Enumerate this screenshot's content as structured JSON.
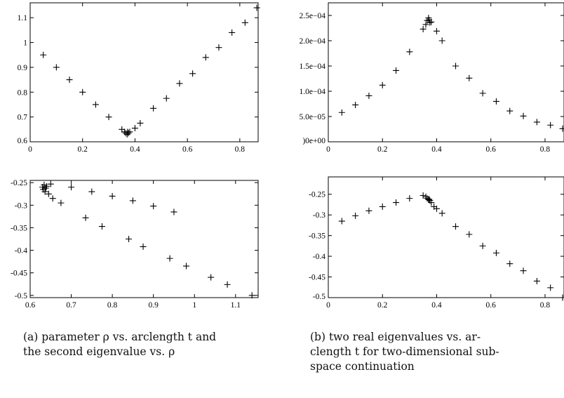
{
  "captions": {
    "a": [
      "(a) parameter ρ vs. arclength t and",
      "the second eigenvalue vs. ρ"
    ],
    "b": [
      "(b)  two  real  eigenvalues  vs.    ar-",
      "clength  t  for  two-dimensional  sub-",
      "space continuation"
    ]
  },
  "chart_data": [
    {
      "type": "scatter",
      "marker": "+",
      "xlim": [
        0,
        0.87
      ],
      "ylim": [
        0.6,
        1.16
      ],
      "xticks": [
        0,
        0.2,
        0.4,
        0.6,
        0.8
      ],
      "xtick_labels": [
        "0",
        "0.2",
        "0.4",
        "0.6",
        "0.8"
      ],
      "yticks": [
        0.6,
        0.7,
        0.8,
        0.9,
        1.0,
        1.1
      ],
      "ytick_labels": [
        "0.6",
        "0.7",
        "0.8",
        "0.9",
        "1",
        "1.1"
      ],
      "x": [
        0.05,
        0.1,
        0.15,
        0.2,
        0.25,
        0.3,
        0.35,
        0.36,
        0.365,
        0.37,
        0.372,
        0.375,
        0.38,
        0.4,
        0.42,
        0.47,
        0.52,
        0.57,
        0.62,
        0.67,
        0.72,
        0.77,
        0.82,
        0.865
      ],
      "y": [
        0.95,
        0.9,
        0.85,
        0.8,
        0.75,
        0.7,
        0.65,
        0.64,
        0.635,
        0.63,
        0.64,
        0.635,
        0.64,
        0.655,
        0.675,
        0.735,
        0.775,
        0.835,
        0.875,
        0.94,
        0.98,
        1.04,
        1.08,
        1.14
      ]
    },
    {
      "type": "scatter",
      "marker": "+",
      "xlim": [
        0.6,
        1.155
      ],
      "ylim": [
        -0.505,
        -0.245
      ],
      "xticks": [
        0.6,
        0.7,
        0.8,
        0.9,
        1.0,
        1.1
      ],
      "xtick_labels": [
        "0.6",
        "0.7",
        "0.8",
        "0.9",
        "1",
        "1.1"
      ],
      "yticks": [
        -0.5,
        -0.45,
        -0.4,
        -0.35,
        -0.3,
        -0.25
      ],
      "ytick_labels": [
        "-0.5",
        "-0.45",
        "-0.4",
        "-0.35",
        "-0.3",
        "-0.25"
      ],
      "x": [
        0.63,
        0.632,
        0.634,
        0.636,
        0.638,
        0.64,
        0.645,
        0.65,
        0.655,
        0.675,
        0.7,
        0.735,
        0.75,
        0.775,
        0.8,
        0.84,
        0.85,
        0.875,
        0.9,
        0.94,
        0.95,
        0.98,
        1.04,
        1.08,
        1.14
      ],
      "y": [
        -0.26,
        -0.265,
        -0.255,
        -0.27,
        -0.262,
        -0.258,
        -0.275,
        -0.253,
        -0.285,
        -0.295,
        -0.26,
        -0.328,
        -0.27,
        -0.347,
        -0.28,
        -0.375,
        -0.29,
        -0.392,
        -0.302,
        -0.418,
        -0.315,
        -0.435,
        -0.46,
        -0.476,
        -0.5
      ]
    },
    {
      "type": "scatter",
      "marker": "+",
      "xlim": [
        0,
        0.87
      ],
      "ylim": [
        0,
        0.000275
      ],
      "xticks": [
        0,
        0.2,
        0.4,
        0.6,
        0.8
      ],
      "xtick_labels": [
        "0",
        "0.2",
        "0.4",
        "0.6",
        "0.8"
      ],
      "yticks": [
        0,
        5e-05,
        0.0001,
        0.00015,
        0.0002,
        0.00025
      ],
      "ytick_labels": [
        ")0e+00",
        "5.0e−05",
        "1.0e−04",
        "1.5e−04",
        "2.0e−04",
        "2.5e−04"
      ],
      "x": [
        0.05,
        0.1,
        0.15,
        0.2,
        0.25,
        0.3,
        0.35,
        0.36,
        0.365,
        0.37,
        0.372,
        0.375,
        0.38,
        0.4,
        0.42,
        0.47,
        0.52,
        0.57,
        0.62,
        0.67,
        0.72,
        0.77,
        0.82,
        0.865
      ],
      "y": [
        5.8e-05,
        7.3e-05,
        9.1e-05,
        0.000112,
        0.000141,
        0.000178,
        0.000223,
        0.000232,
        0.00024,
        0.000245,
        0.000241,
        0.000236,
        0.000237,
        0.000219,
        0.0002,
        0.00015,
        0.000126,
        9.6e-05,
        8e-05,
        6.1e-05,
        5.1e-05,
        3.9e-05,
        3.3e-05,
        2.6e-05
      ]
    },
    {
      "type": "scatter",
      "marker": "+",
      "xlim": [
        0,
        0.87
      ],
      "ylim": [
        -0.5,
        -0.208
      ],
      "xticks": [
        0,
        0.2,
        0.4,
        0.6,
        0.8
      ],
      "xtick_labels": [
        "0",
        "0.2",
        "0.4",
        "0.6",
        "0.8"
      ],
      "yticks": [
        -0.5,
        -0.45,
        -0.4,
        -0.35,
        -0.3,
        -0.25
      ],
      "ytick_labels": [
        "-0.5",
        "-0.45",
        "-0.4",
        "-0.35",
        "-0.3",
        "-0.25"
      ],
      "x": [
        0.05,
        0.1,
        0.15,
        0.2,
        0.25,
        0.3,
        0.35,
        0.36,
        0.365,
        0.37,
        0.372,
        0.375,
        0.38,
        0.39,
        0.4,
        0.42,
        0.47,
        0.52,
        0.57,
        0.62,
        0.67,
        0.72,
        0.77,
        0.82,
        0.865
      ],
      "y": [
        -0.315,
        -0.302,
        -0.29,
        -0.28,
        -0.27,
        -0.26,
        -0.253,
        -0.256,
        -0.26,
        -0.263,
        -0.262,
        -0.265,
        -0.27,
        -0.28,
        -0.285,
        -0.296,
        -0.328,
        -0.347,
        -0.375,
        -0.392,
        -0.418,
        -0.435,
        -0.46,
        -0.476,
        -0.5
      ]
    }
  ]
}
